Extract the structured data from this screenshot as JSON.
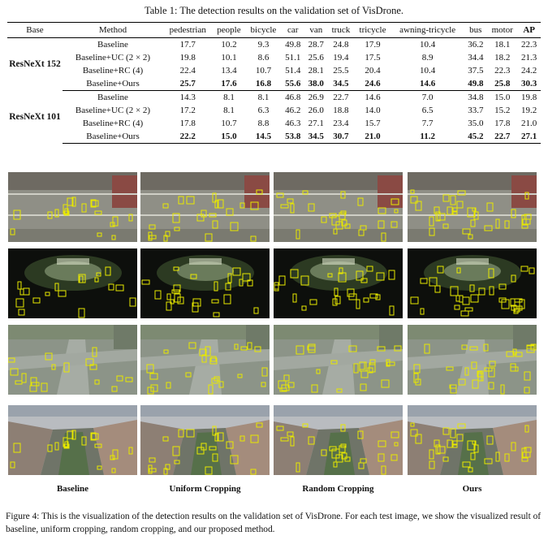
{
  "table": {
    "caption": "Table 1: The detection results on the validation set of VisDrone.",
    "headers": [
      "Base",
      "Method",
      "pedestrian",
      "people",
      "bicycle",
      "car",
      "van",
      "truck",
      "tricycle",
      "awning-tricycle",
      "bus",
      "motor",
      "AP"
    ],
    "groups": [
      {
        "base": "ResNeXt 152",
        "rows": [
          {
            "method": "Baseline",
            "values": [
              "17.7",
              "10.2",
              "9.3",
              "49.8",
              "28.7",
              "24.8",
              "17.9",
              "10.4",
              "36.2",
              "18.1",
              "22.3"
            ]
          },
          {
            "method": "Baseline+UC (2 × 2)",
            "values": [
              "19.8",
              "10.1",
              "8.6",
              "51.1",
              "25.6",
              "19.4",
              "17.5",
              "8.9",
              "34.4",
              "18.2",
              "21.3"
            ]
          },
          {
            "method": "Baseline+RC (4)",
            "values": [
              "22.4",
              "13.4",
              "10.7",
              "51.4",
              "28.1",
              "25.5",
              "20.4",
              "10.4",
              "37.5",
              "22.3",
              "24.2"
            ]
          },
          {
            "method": "Baseline+Ours",
            "values": [
              "25.7",
              "17.6",
              "16.8",
              "55.6",
              "38.0",
              "34.5",
              "24.6",
              "14.6",
              "49.8",
              "25.8",
              "30.3"
            ]
          }
        ]
      },
      {
        "base": "ResNeXt 101",
        "rows": [
          {
            "method": "Baseline",
            "values": [
              "14.3",
              "8.1",
              "8.1",
              "46.8",
              "26.9",
              "22.7",
              "14.6",
              "7.0",
              "34.8",
              "15.0",
              "19.8"
            ]
          },
          {
            "method": "Baseline+UC (2 × 2)",
            "values": [
              "17.2",
              "8.1",
              "6.3",
              "46.2",
              "26.0",
              "18.8",
              "14.0",
              "6.5",
              "33.7",
              "15.2",
              "19.2"
            ]
          },
          {
            "method": "Baseline+RC (4)",
            "values": [
              "17.8",
              "10.7",
              "8.8",
              "46.3",
              "27.1",
              "23.4",
              "15.7",
              "7.7",
              "35.0",
              "17.8",
              "21.0"
            ]
          },
          {
            "method": "Baseline+Ours",
            "values": [
              "22.2",
              "15.0",
              "14.5",
              "53.8",
              "34.5",
              "30.7",
              "21.0",
              "11.2",
              "45.2",
              "22.7",
              "27.1"
            ]
          }
        ]
      }
    ]
  },
  "figure": {
    "columns": [
      "Baseline",
      "Uniform Cropping",
      "Random Cropping",
      "Ours"
    ],
    "scenes": [
      "parking-lot",
      "night-square",
      "road-intersection",
      "city-street"
    ],
    "box_color": "#e8e800",
    "caption": "Figure 4: This is the visualization of the detection results on the validation set of VisDrone. For each test image, we show the visualized result of baseline, uniform cropping, random cropping, and our proposed method."
  }
}
